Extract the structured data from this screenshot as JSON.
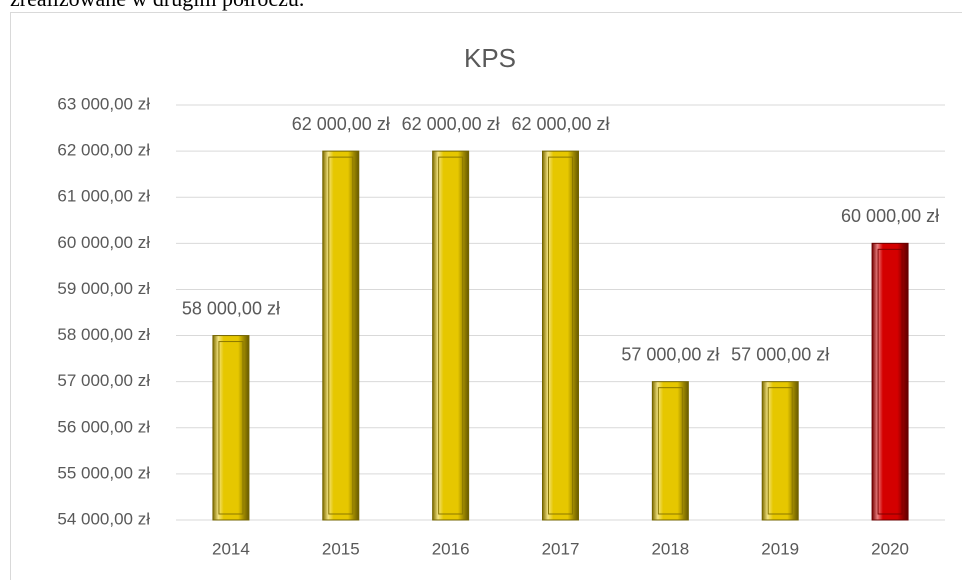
{
  "caption": "zrealizowane w drugim półroczu.",
  "chart_data": {
    "type": "bar",
    "title": "KPS",
    "categories": [
      "2014",
      "2015",
      "2016",
      "2017",
      "2018",
      "2019",
      "2020"
    ],
    "values": [
      58000,
      62000,
      62000,
      62000,
      57000,
      57000,
      60000
    ],
    "value_labels": [
      "58 000,00 zł",
      "62 000,00 zł",
      "62 000,00 zł",
      "62 000,00 zł",
      "57 000,00 zł",
      "57 000,00 zł",
      "60 000,00 zł"
    ],
    "colors": [
      "#e6c700",
      "#e6c700",
      "#e6c700",
      "#e6c700",
      "#e6c700",
      "#e6c700",
      "#d40000"
    ],
    "ylim": [
      54000,
      63000
    ],
    "yticks": [
      {
        "value": 54000,
        "label": "54 000,00 zł"
      },
      {
        "value": 55000,
        "label": "55 000,00 zł"
      },
      {
        "value": 56000,
        "label": "56 000,00 zł"
      },
      {
        "value": 57000,
        "label": "57 000,00 zł"
      },
      {
        "value": 58000,
        "label": "58 000,00 zł"
      },
      {
        "value": 59000,
        "label": "59 000,00 zł"
      },
      {
        "value": 60000,
        "label": "60 000,00 zł"
      },
      {
        "value": 61000,
        "label": "61 000,00 zł"
      },
      {
        "value": 62000,
        "label": "62 000,00 zł"
      },
      {
        "value": 63000,
        "label": "63 000,00 zł"
      }
    ],
    "grid": true
  }
}
